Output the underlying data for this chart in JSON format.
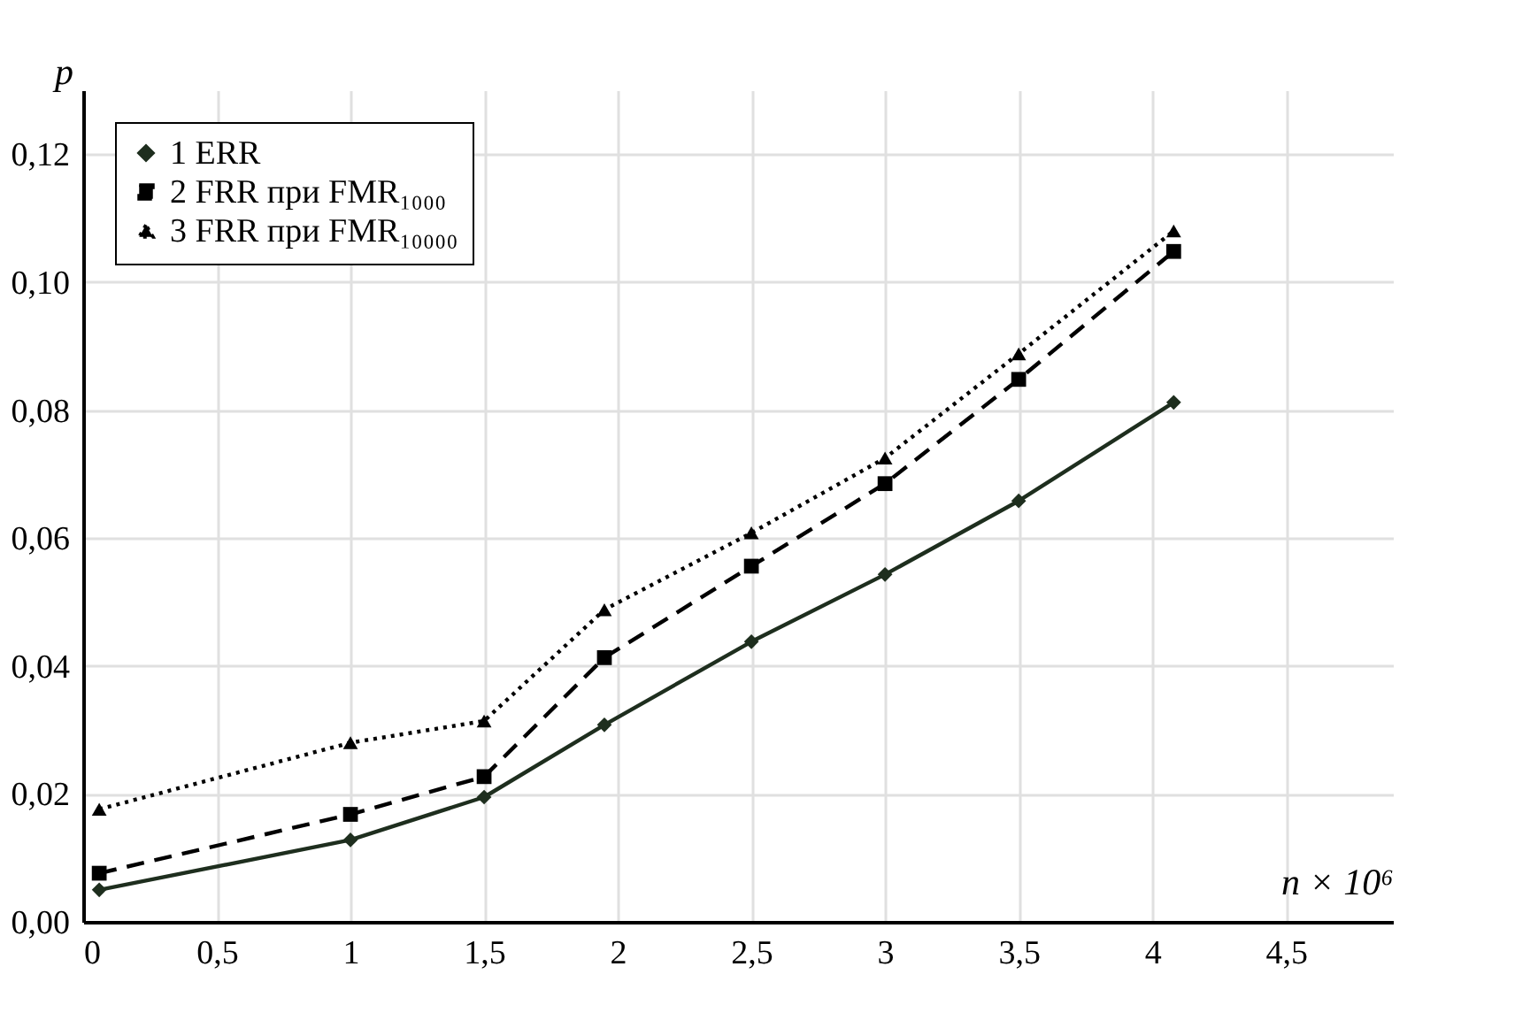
{
  "chart_data": {
    "type": "line",
    "xlabel": "n × 10⁶",
    "ylabel": "p",
    "x": [
      0.06,
      1,
      1.5,
      1.95,
      2.5,
      3,
      3.5,
      4.08
    ],
    "series": [
      {
        "name": "1 ERR",
        "color": "#1e2e1e",
        "marker": "diamond",
        "line_style": "solid",
        "values": [
          0.005,
          0.0128,
          0.0195,
          0.0308,
          0.0438,
          0.0543,
          0.0658,
          0.0812
        ]
      },
      {
        "name": "2 FRR при FMR₁₀₀₀",
        "color": "#000000",
        "marker": "square",
        "line_style": "dashed",
        "values": [
          0.0076,
          0.0168,
          0.0227,
          0.0413,
          0.0556,
          0.0685,
          0.0848,
          0.1048
        ]
      },
      {
        "name": "3 FRR при FMR₁₀₀₀₀",
        "color": "#000000",
        "marker": "triangle",
        "line_style": "dotted",
        "values": [
          0.0176,
          0.028,
          0.0314,
          0.0488,
          0.0608,
          0.0725,
          0.0888,
          0.108
        ]
      }
    ],
    "xlim": [
      0,
      4.9
    ],
    "ylim": [
      0,
      0.13
    ],
    "xticks": [
      0,
      {
        "value": 0.5,
        "label": "0,5"
      },
      1,
      {
        "value": 1.5,
        "label": "1,5"
      },
      2,
      {
        "value": 2.5,
        "label": "2,5"
      },
      3,
      {
        "value": 3.5,
        "label": "3,5"
      },
      4,
      {
        "value": 4.5,
        "label": "4,5"
      }
    ],
    "yticks": [
      {
        "value": 0,
        "label": "0,00"
      },
      {
        "value": 0.02,
        "label": "0,02"
      },
      {
        "value": 0.04,
        "label": "0,04"
      },
      {
        "value": 0.06,
        "label": "0,06"
      },
      {
        "value": 0.08,
        "label": "0,08"
      },
      {
        "value": 0.1,
        "label": "0,10"
      },
      {
        "value": 0.12,
        "label": "0,12"
      }
    ],
    "grid": true,
    "legend": "top left"
  }
}
